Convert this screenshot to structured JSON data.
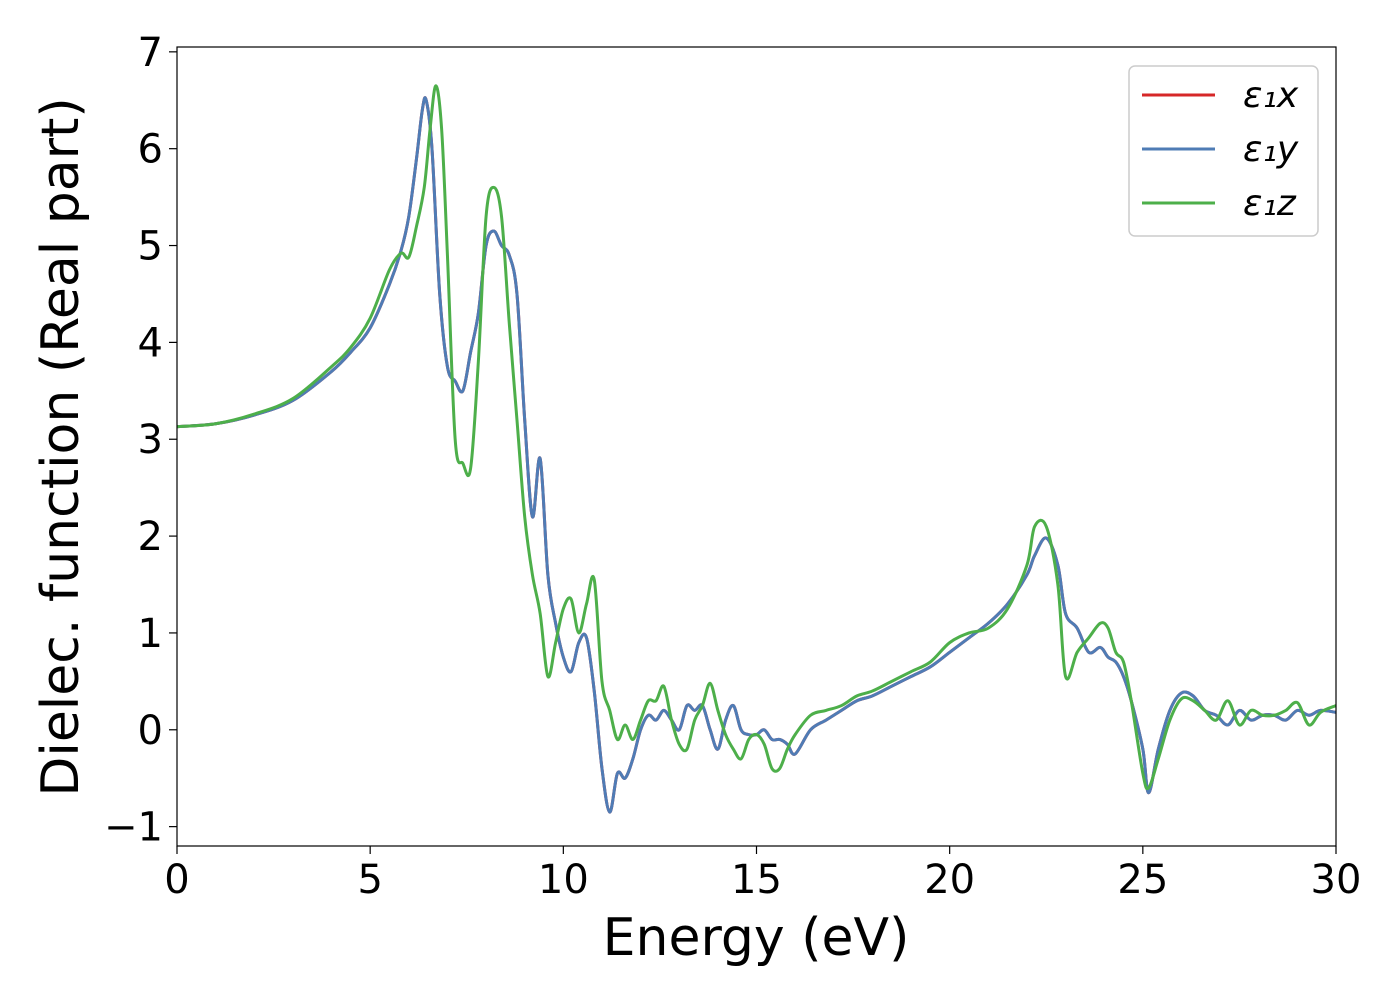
{
  "chart_data": {
    "type": "line",
    "title": "",
    "xlabel": "Energy (eV)",
    "ylabel": "Dielec. function (Real part)",
    "xlim": [
      0,
      30
    ],
    "ylim": [
      -1.2,
      7.05
    ],
    "xticks": [
      0,
      5,
      10,
      15,
      20,
      25,
      30
    ],
    "yticks": [
      -1,
      0,
      1,
      2,
      3,
      4,
      5,
      6,
      7
    ],
    "ytick_labels": [
      "−1",
      "0",
      "1",
      "2",
      "3",
      "4",
      "5",
      "6",
      "7"
    ],
    "grid": false,
    "legend_position": "top-right",
    "series": [
      {
        "name": "ε₁x",
        "color": "#d62728",
        "x": [
          0,
          1,
          2,
          3,
          4,
          4.5,
          5,
          5.5,
          5.8,
          6.0,
          6.2,
          6.35,
          6.45,
          6.6,
          6.8,
          7.0,
          7.2,
          7.4,
          7.6,
          7.8,
          8.0,
          8.2,
          8.4,
          8.6,
          8.8,
          9.0,
          9.2,
          9.4,
          9.6,
          9.8,
          10.0,
          10.2,
          10.4,
          10.6,
          10.8,
          11.0,
          11.2,
          11.4,
          11.6,
          11.8,
          12.0,
          12.2,
          12.4,
          12.6,
          12.8,
          13.0,
          13.2,
          13.4,
          13.6,
          13.8,
          14.0,
          14.2,
          14.4,
          14.6,
          14.8,
          15.0,
          15.2,
          15.4,
          15.6,
          15.8,
          16.0,
          16.4,
          16.8,
          17.2,
          17.6,
          18.0,
          18.5,
          19.0,
          19.5,
          20.0,
          20.5,
          21.0,
          21.5,
          22.0,
          22.2,
          22.5,
          22.8,
          23.0,
          23.3,
          23.6,
          23.9,
          24.1,
          24.3,
          24.5,
          24.7,
          25.0,
          25.15,
          25.4,
          25.7,
          26.0,
          26.3,
          26.6,
          26.9,
          27.2,
          27.5,
          27.8,
          28.1,
          28.4,
          28.7,
          29.0,
          29.3,
          29.6,
          30.0
        ],
        "values": [
          3.13,
          3.16,
          3.25,
          3.4,
          3.7,
          3.9,
          4.15,
          4.6,
          4.95,
          5.3,
          5.9,
          6.4,
          6.5,
          6.0,
          4.5,
          3.75,
          3.6,
          3.5,
          3.9,
          4.3,
          5.0,
          5.15,
          5.0,
          4.9,
          4.5,
          3.2,
          2.2,
          2.8,
          1.6,
          1.1,
          0.75,
          0.6,
          0.9,
          0.95,
          0.4,
          -0.4,
          -0.85,
          -0.45,
          -0.5,
          -0.3,
          0.0,
          0.15,
          0.1,
          0.2,
          0.1,
          0.0,
          0.25,
          0.2,
          0.25,
          0.0,
          -0.2,
          0.1,
          0.25,
          0.0,
          -0.05,
          -0.05,
          0.0,
          -0.1,
          -0.1,
          -0.15,
          -0.25,
          0.0,
          0.1,
          0.2,
          0.3,
          0.35,
          0.45,
          0.55,
          0.65,
          0.8,
          0.95,
          1.1,
          1.3,
          1.6,
          1.8,
          1.98,
          1.7,
          1.2,
          1.05,
          0.8,
          0.85,
          0.75,
          0.7,
          0.55,
          0.3,
          -0.2,
          -0.65,
          -0.2,
          0.2,
          0.38,
          0.35,
          0.2,
          0.15,
          0.05,
          0.2,
          0.1,
          0.15,
          0.15,
          0.1,
          0.2,
          0.15,
          0.2,
          0.18
        ]
      },
      {
        "name": "ε₁y",
        "color": "#4f7cb5",
        "x": [
          0,
          1,
          2,
          3,
          4,
          4.5,
          5,
          5.5,
          5.8,
          6.0,
          6.2,
          6.35,
          6.45,
          6.6,
          6.8,
          7.0,
          7.2,
          7.4,
          7.6,
          7.8,
          8.0,
          8.2,
          8.4,
          8.6,
          8.8,
          9.0,
          9.2,
          9.4,
          9.6,
          9.8,
          10.0,
          10.2,
          10.4,
          10.6,
          10.8,
          11.0,
          11.2,
          11.4,
          11.6,
          11.8,
          12.0,
          12.2,
          12.4,
          12.6,
          12.8,
          13.0,
          13.2,
          13.4,
          13.6,
          13.8,
          14.0,
          14.2,
          14.4,
          14.6,
          14.8,
          15.0,
          15.2,
          15.4,
          15.6,
          15.8,
          16.0,
          16.4,
          16.8,
          17.2,
          17.6,
          18.0,
          18.5,
          19.0,
          19.5,
          20.0,
          20.5,
          21.0,
          21.5,
          22.0,
          22.2,
          22.5,
          22.8,
          23.0,
          23.3,
          23.6,
          23.9,
          24.1,
          24.3,
          24.5,
          24.7,
          25.0,
          25.15,
          25.4,
          25.7,
          26.0,
          26.3,
          26.6,
          26.9,
          27.2,
          27.5,
          27.8,
          28.1,
          28.4,
          28.7,
          29.0,
          29.3,
          29.6,
          30.0
        ],
        "values": [
          3.13,
          3.16,
          3.25,
          3.4,
          3.7,
          3.9,
          4.15,
          4.6,
          4.95,
          5.3,
          5.9,
          6.4,
          6.5,
          6.0,
          4.5,
          3.75,
          3.6,
          3.5,
          3.9,
          4.3,
          5.0,
          5.15,
          5.0,
          4.9,
          4.5,
          3.2,
          2.2,
          2.8,
          1.6,
          1.1,
          0.75,
          0.6,
          0.9,
          0.95,
          0.4,
          -0.4,
          -0.85,
          -0.45,
          -0.5,
          -0.3,
          0.0,
          0.15,
          0.1,
          0.2,
          0.1,
          0.0,
          0.25,
          0.2,
          0.25,
          0.0,
          -0.2,
          0.1,
          0.25,
          0.0,
          -0.05,
          -0.05,
          0.0,
          -0.1,
          -0.1,
          -0.15,
          -0.25,
          0.0,
          0.1,
          0.2,
          0.3,
          0.35,
          0.45,
          0.55,
          0.65,
          0.8,
          0.95,
          1.1,
          1.3,
          1.6,
          1.8,
          1.98,
          1.7,
          1.2,
          1.05,
          0.8,
          0.85,
          0.75,
          0.7,
          0.55,
          0.3,
          -0.2,
          -0.65,
          -0.2,
          0.2,
          0.38,
          0.35,
          0.2,
          0.15,
          0.05,
          0.2,
          0.1,
          0.15,
          0.15,
          0.1,
          0.2,
          0.15,
          0.2,
          0.18
        ]
      },
      {
        "name": "ε₁z",
        "color": "#4daf4a",
        "x": [
          0,
          1,
          2,
          3,
          4,
          4.5,
          5,
          5.5,
          5.8,
          6.0,
          6.2,
          6.4,
          6.55,
          6.7,
          6.85,
          7.0,
          7.2,
          7.4,
          7.6,
          7.8,
          8.0,
          8.2,
          8.4,
          8.6,
          8.8,
          9.0,
          9.2,
          9.4,
          9.6,
          9.8,
          10.0,
          10.2,
          10.4,
          10.6,
          10.8,
          11.0,
          11.2,
          11.4,
          11.6,
          11.8,
          12.0,
          12.2,
          12.4,
          12.6,
          12.8,
          13.0,
          13.2,
          13.4,
          13.6,
          13.8,
          14.0,
          14.2,
          14.4,
          14.6,
          14.8,
          15.0,
          15.2,
          15.4,
          15.6,
          15.8,
          16.0,
          16.4,
          16.8,
          17.2,
          17.6,
          18.0,
          18.5,
          19.0,
          19.5,
          20.0,
          20.5,
          21.0,
          21.5,
          22.0,
          22.2,
          22.5,
          22.8,
          23.0,
          23.3,
          23.6,
          23.9,
          24.1,
          24.3,
          24.5,
          24.7,
          25.0,
          25.15,
          25.4,
          25.7,
          26.0,
          26.3,
          26.6,
          26.9,
          27.2,
          27.5,
          27.8,
          28.1,
          28.4,
          28.7,
          29.0,
          29.3,
          29.6,
          30.0
        ],
        "values": [
          3.13,
          3.16,
          3.26,
          3.42,
          3.75,
          3.95,
          4.25,
          4.75,
          4.92,
          4.88,
          5.2,
          5.6,
          6.2,
          6.65,
          6.2,
          4.9,
          3.0,
          2.75,
          2.7,
          3.8,
          5.3,
          5.6,
          5.3,
          4.2,
          3.2,
          2.2,
          1.6,
          1.2,
          0.55,
          0.9,
          1.25,
          1.35,
          1.0,
          1.3,
          1.55,
          0.5,
          0.2,
          -0.1,
          0.05,
          -0.1,
          0.1,
          0.3,
          0.3,
          0.45,
          0.1,
          -0.15,
          -0.2,
          0.1,
          0.25,
          0.48,
          0.2,
          -0.05,
          -0.2,
          -0.3,
          -0.1,
          -0.05,
          -0.15,
          -0.4,
          -0.4,
          -0.2,
          -0.05,
          0.15,
          0.2,
          0.25,
          0.35,
          0.4,
          0.5,
          0.6,
          0.7,
          0.9,
          1.0,
          1.05,
          1.25,
          1.7,
          2.1,
          2.1,
          1.5,
          0.55,
          0.8,
          0.95,
          1.1,
          1.05,
          0.8,
          0.7,
          0.3,
          -0.45,
          -0.6,
          -0.3,
          0.1,
          0.32,
          0.3,
          0.2,
          0.1,
          0.3,
          0.05,
          0.2,
          0.15,
          0.15,
          0.2,
          0.28,
          0.05,
          0.18,
          0.25
        ]
      }
    ]
  }
}
